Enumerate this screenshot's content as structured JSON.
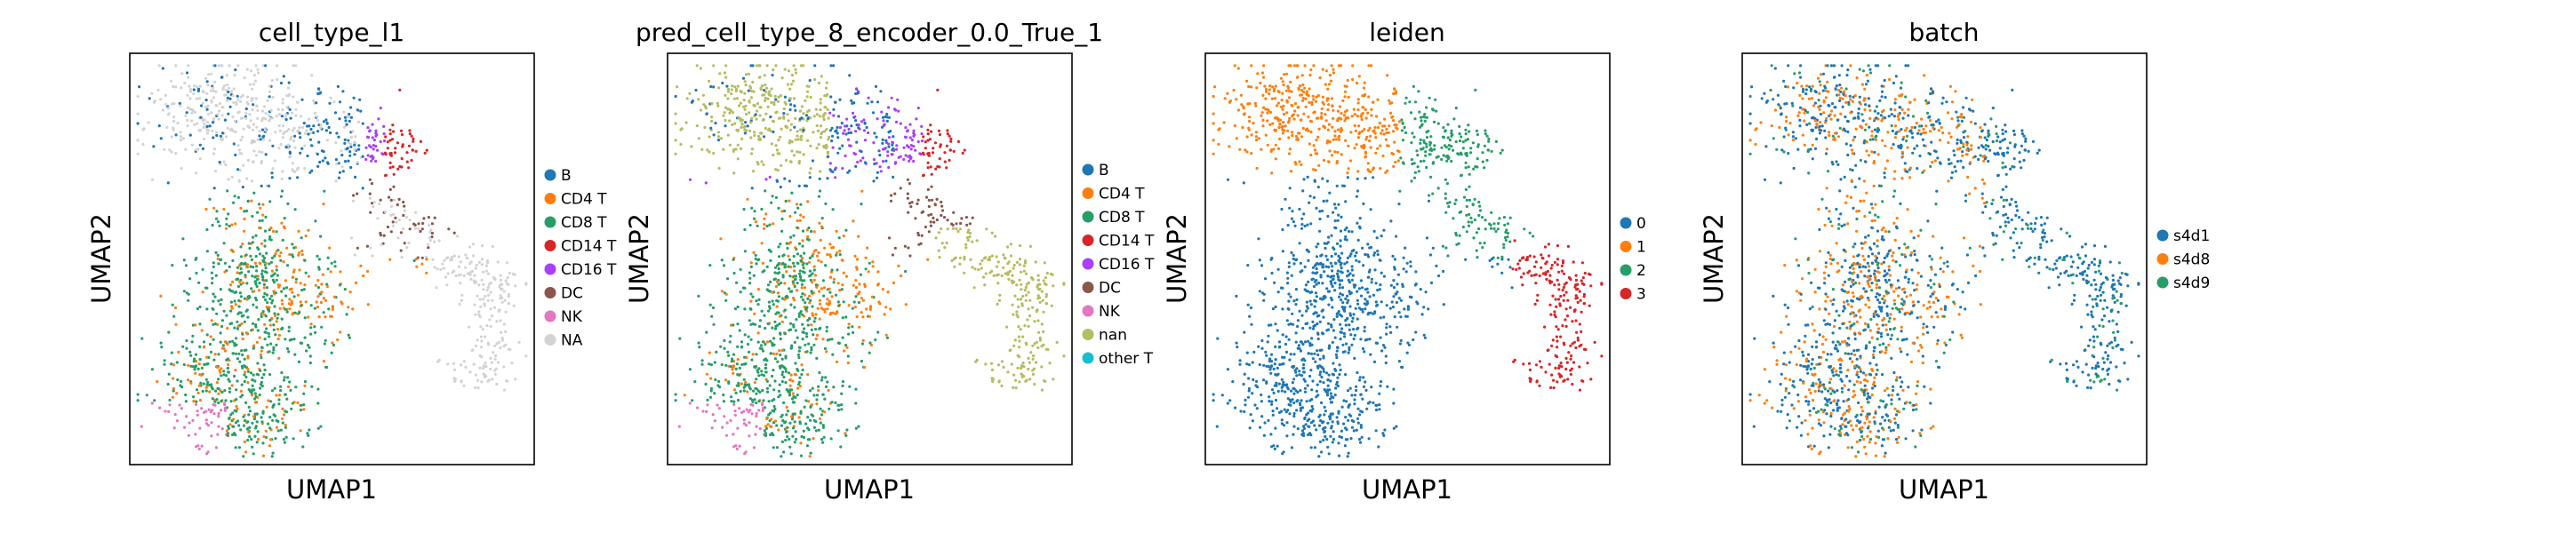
{
  "chart_data": [
    {
      "type": "scatter",
      "title": "cell_type_l1",
      "xlabel": "UMAP1",
      "ylabel": "UMAP2",
      "xticks": [],
      "yticks": [],
      "legend_position": "right",
      "categories": [
        {
          "label": "B",
          "color": "#1f77b4"
        },
        {
          "label": "CD4 T",
          "color": "#ff7f0e"
        },
        {
          "label": "CD8 T",
          "color": "#279e68"
        },
        {
          "label": "CD14 T",
          "color": "#d62728"
        },
        {
          "label": "CD16 T",
          "color": "#aa40fc"
        },
        {
          "label": "DC",
          "color": "#8c564b"
        },
        {
          "label": "NK",
          "color": "#e377c2"
        },
        {
          "label": "NA",
          "color": "#d3d3d3"
        }
      ]
    },
    {
      "type": "scatter",
      "title": "pred_cell_type_8_encoder_0.0_True_1",
      "xlabel": "UMAP1",
      "ylabel": "UMAP2",
      "xticks": [],
      "yticks": [],
      "legend_position": "right",
      "categories": [
        {
          "label": "B",
          "color": "#1f77b4"
        },
        {
          "label": "CD4 T",
          "color": "#ff7f0e"
        },
        {
          "label": "CD8 T",
          "color": "#279e68"
        },
        {
          "label": "CD14 T",
          "color": "#d62728"
        },
        {
          "label": "CD16 T",
          "color": "#aa40fc"
        },
        {
          "label": "DC",
          "color": "#8c564b"
        },
        {
          "label": "NK",
          "color": "#e377c2"
        },
        {
          "label": "nan",
          "color": "#b5bd61"
        },
        {
          "label": "other T",
          "color": "#17becf"
        }
      ]
    },
    {
      "type": "scatter",
      "title": "leiden",
      "xlabel": "UMAP1",
      "ylabel": "UMAP2",
      "xticks": [],
      "yticks": [],
      "legend_position": "right",
      "categories": [
        {
          "label": "0",
          "color": "#1f77b4"
        },
        {
          "label": "1",
          "color": "#ff7f0e"
        },
        {
          "label": "2",
          "color": "#279e68"
        },
        {
          "label": "3",
          "color": "#d62728"
        }
      ]
    },
    {
      "type": "scatter",
      "title": "batch",
      "xlabel": "UMAP1",
      "ylabel": "UMAP2",
      "xticks": [],
      "yticks": [],
      "legend_position": "right",
      "categories": [
        {
          "label": "s4d1",
          "color": "#1f77b4"
        },
        {
          "label": "s4d8",
          "color": "#ff7f0e"
        },
        {
          "label": "s4d9",
          "color": "#279e68"
        }
      ]
    }
  ]
}
